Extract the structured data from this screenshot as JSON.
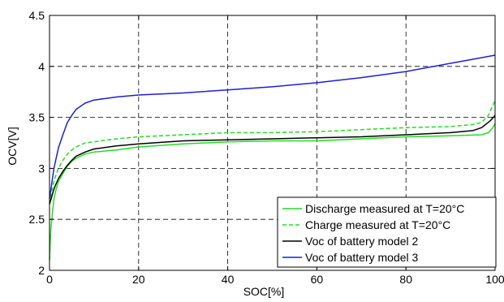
{
  "chart_data": {
    "type": "line",
    "xlabel": "SOC[%]",
    "ylabel": "OCV[V]",
    "xlim": [
      0,
      100
    ],
    "ylim": [
      2,
      4.5
    ],
    "xticks": [
      "0",
      "20",
      "40",
      "60",
      "80",
      "100"
    ],
    "yticks": [
      "2",
      "2.5",
      "3",
      "3.5",
      "4",
      "4.5"
    ],
    "xtick_values": [
      0,
      20,
      40,
      60,
      80,
      100
    ],
    "ytick_values": [
      2,
      2.5,
      3,
      3.5,
      4,
      4.5
    ],
    "grid": true,
    "legend_position": "bottom-right",
    "series": [
      {
        "name": "Discharge measured at T=20°C",
        "color": "#22dd22",
        "dash": "solid",
        "x": [
          0,
          0.3,
          0.7,
          1,
          1.5,
          2,
          3,
          4,
          5,
          6,
          8,
          10,
          15,
          20,
          30,
          40,
          50,
          60,
          70,
          80,
          90,
          97,
          98.5,
          99.5,
          100
        ],
        "y": [
          2.1,
          2.4,
          2.58,
          2.7,
          2.8,
          2.87,
          2.95,
          3.02,
          3.07,
          3.1,
          3.14,
          3.16,
          3.18,
          3.21,
          3.24,
          3.26,
          3.27,
          3.27,
          3.29,
          3.31,
          3.32,
          3.33,
          3.35,
          3.4,
          3.44
        ]
      },
      {
        "name": "Charge measured at T=20°C",
        "color": "#22dd22",
        "dash": "dashed",
        "x": [
          0,
          0.5,
          1,
          2,
          3,
          4,
          5,
          6,
          8,
          10,
          15,
          20,
          30,
          40,
          50,
          60,
          70,
          80,
          90,
          95,
          97,
          98.5,
          99.5,
          100
        ],
        "y": [
          2.65,
          2.78,
          2.88,
          3.0,
          3.08,
          3.14,
          3.18,
          3.21,
          3.25,
          3.26,
          3.29,
          3.31,
          3.33,
          3.35,
          3.35,
          3.36,
          3.38,
          3.4,
          3.41,
          3.43,
          3.45,
          3.52,
          3.62,
          3.66
        ]
      },
      {
        "name": "Voc of battery model 2",
        "color": "#000000",
        "dash": "solid",
        "x": [
          0,
          0.5,
          1,
          2,
          3,
          4,
          5,
          6,
          8,
          10,
          15,
          20,
          30,
          40,
          50,
          60,
          70,
          80,
          90,
          95,
          97,
          99,
          100
        ],
        "y": [
          2.65,
          2.72,
          2.8,
          2.9,
          2.97,
          3.03,
          3.08,
          3.12,
          3.16,
          3.19,
          3.22,
          3.24,
          3.27,
          3.28,
          3.29,
          3.3,
          3.31,
          3.33,
          3.35,
          3.37,
          3.4,
          3.47,
          3.52
        ]
      },
      {
        "name": "Voc of battery model 3",
        "color": "#1f1fd0",
        "dash": "solid",
        "x": [
          0,
          0.5,
          1,
          1.5,
          2,
          3,
          4,
          5,
          6,
          8,
          10,
          15,
          20,
          30,
          40,
          50,
          60,
          70,
          80,
          90,
          100
        ],
        "y": [
          2.7,
          2.85,
          3.0,
          3.1,
          3.2,
          3.33,
          3.45,
          3.52,
          3.58,
          3.64,
          3.67,
          3.7,
          3.72,
          3.74,
          3.77,
          3.8,
          3.84,
          3.89,
          3.95,
          4.03,
          4.11
        ]
      }
    ]
  }
}
